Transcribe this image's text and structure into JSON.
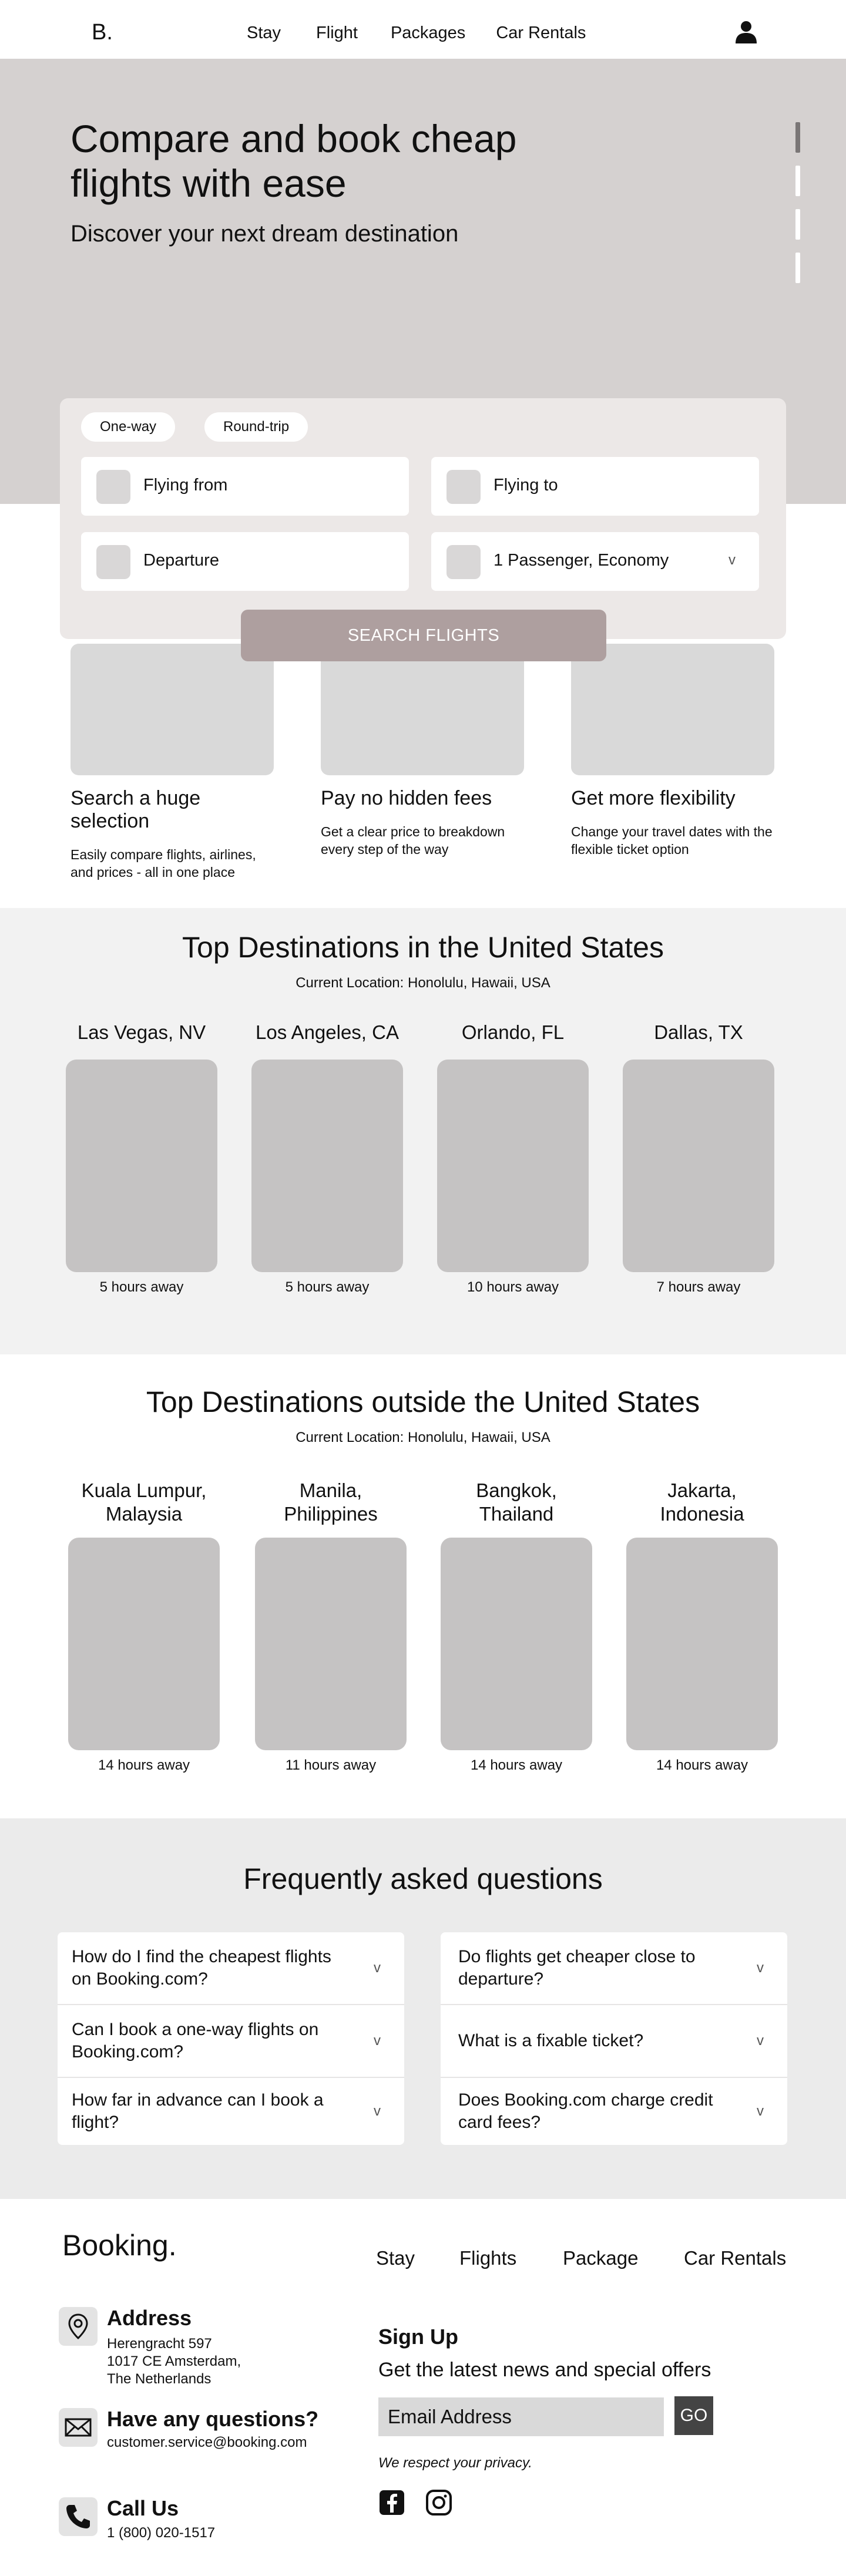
{
  "nav": {
    "logo": "B.",
    "links": [
      "Stay",
      "Flight",
      "Packages",
      "Car Rentals"
    ],
    "user_icon": "user-icon"
  },
  "hero": {
    "title": "Compare and book cheap flights with ease",
    "subtitle": "Discover your next dream destination",
    "slides": 4,
    "active_slide": 1
  },
  "search": {
    "tabs": [
      "One-way",
      "Round-trip"
    ],
    "flying_from": "Flying from",
    "flying_to": "Flying to",
    "departure": "Departure",
    "passengers": "1 Passenger, Economy",
    "chevron": "v",
    "button": "SEARCH FLIGHTS"
  },
  "features": [
    {
      "title": "Search a huge selection",
      "text": "Easily compare flights, airlines, and prices - all in one place"
    },
    {
      "title": "Pay no hidden fees",
      "text": "Get a clear price to breakdown every step of the way"
    },
    {
      "title": "Get more flexibility",
      "text": "Change your travel dates with the flexible ticket option"
    }
  ],
  "domestic": {
    "title": "Top Destinations in the United States",
    "location": "Current Location: Honolulu, Hawaii, USA",
    "cards": [
      {
        "city": "Las Vegas, NV",
        "hours": "5 hours away"
      },
      {
        "city": "Los Angeles, CA",
        "hours": "5 hours away"
      },
      {
        "city": "Orlando, FL",
        "hours": "10 hours away"
      },
      {
        "city": "Dallas, TX",
        "hours": "7 hours away"
      }
    ]
  },
  "international": {
    "title": "Top Destinations outside the United States",
    "location": "Current Location: Honolulu, Hawaii, USA",
    "cards": [
      {
        "city_line1": "Kuala Lumpur,",
        "city_line2": "Malaysia",
        "hours": "14 hours away"
      },
      {
        "city_line1": "Manila,",
        "city_line2": "Philippines",
        "hours": "11 hours away"
      },
      {
        "city_line1": "Bangkok,",
        "city_line2": "Thailand",
        "hours": "14 hours away"
      },
      {
        "city_line1": "Jakarta,",
        "city_line2": "Indonesia",
        "hours": "14 hours away"
      }
    ]
  },
  "faq": {
    "title": "Frequently asked questions",
    "left": [
      "How do I find the cheapest flights on Booking.com?",
      "Can I book a one-way flights on Booking.com?",
      "How far in advance can I book a flight?"
    ],
    "right": [
      "Do flights get cheaper close to departure?",
      "What is a fixable ticket?",
      "Does Booking.com charge credit card fees?"
    ],
    "chevron": "v"
  },
  "footer": {
    "brand": "Booking.",
    "links": [
      "Stay",
      "Flights",
      "Package",
      "Car Rentals"
    ],
    "address": {
      "title": "Address",
      "lines": [
        "Herengracht 597",
        "1017 CE Amsterdam,",
        "The Netherlands"
      ]
    },
    "questions": {
      "title": "Have any questions?",
      "email": "customer.service@booking.com"
    },
    "call": {
      "title": "Call Us",
      "phone": "1 (800) 020-1517"
    },
    "signup": {
      "title": "Sign Up",
      "tagline": "Get the latest news and special offers",
      "placeholder": "Email Address",
      "button": "GO",
      "privacy": "We respect your privacy."
    },
    "social_icons": [
      "facebook-icon",
      "instagram-icon"
    ]
  }
}
